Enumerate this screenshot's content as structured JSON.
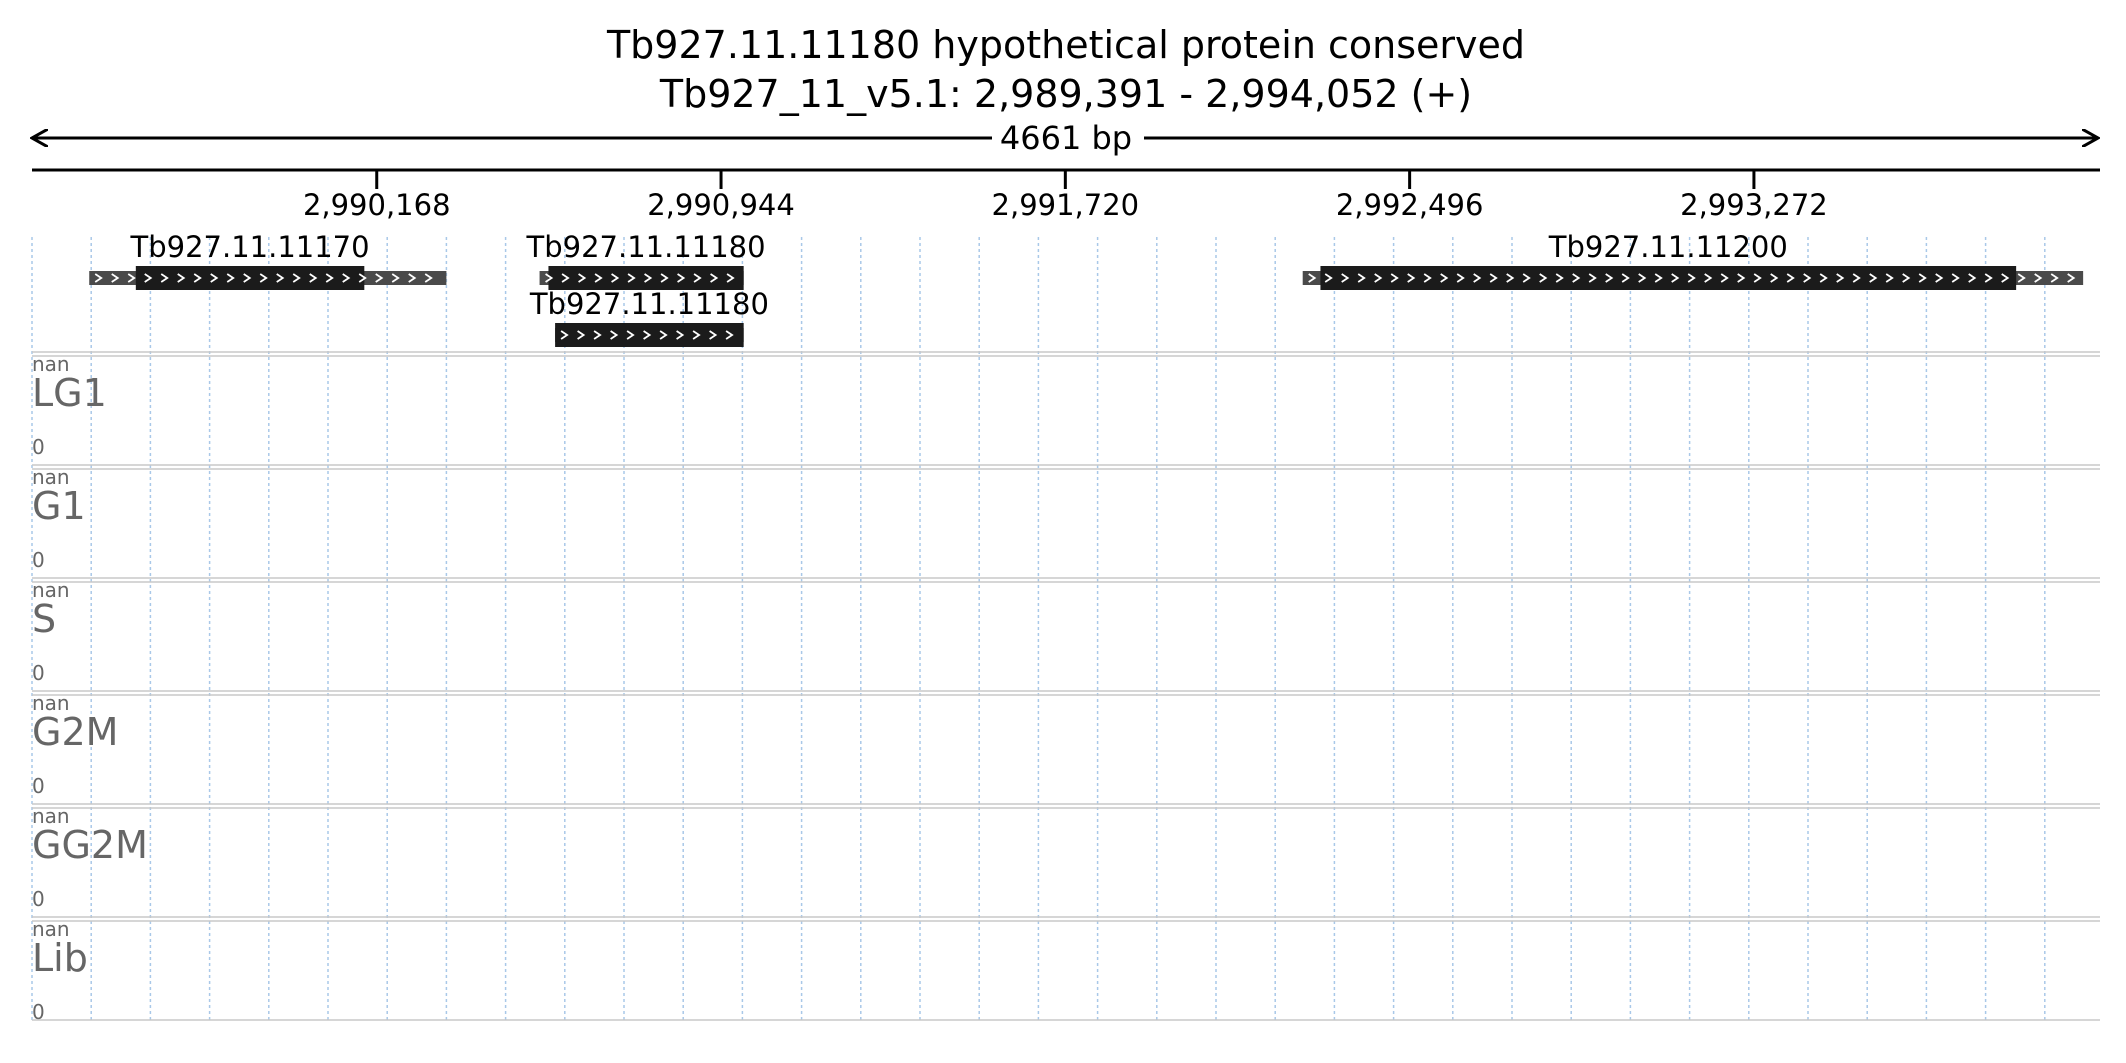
{
  "header": {
    "gene_title": "Tb927.11.11180  hypothetical protein  conserved",
    "locus": "Tb927_11_v5.1: 2,989,391 - 2,994,052 (+)",
    "span_label": "4661 bp"
  },
  "region": {
    "start": 2989391,
    "end": 2994052
  },
  "ruler": {
    "ticks": [
      {
        "pos": 2990168,
        "label": "2,990,168"
      },
      {
        "pos": 2990944,
        "label": "2,990,944"
      },
      {
        "pos": 2991720,
        "label": "2,991,720"
      },
      {
        "pos": 2992496,
        "label": "2,992,496"
      },
      {
        "pos": 2993272,
        "label": "2,993,272"
      }
    ]
  },
  "features": [
    {
      "name": "Tb927.11.11170",
      "row": 0,
      "start": 2989520,
      "end": 2990325,
      "cds_start": 2989625,
      "cds_end": 2990140
    },
    {
      "name": "Tb927.11.11180",
      "row": 0,
      "start": 2990535,
      "end": 2990995,
      "cds_start": 2990555,
      "cds_end": 2990995
    },
    {
      "name": "Tb927.11.11180",
      "row": 1,
      "start": 2990570,
      "end": 2990995,
      "cds_start": 2990570,
      "cds_end": 2990995
    },
    {
      "name": "Tb927.11.11200",
      "row": 0,
      "start": 2992255,
      "end": 2994014,
      "cds_start": 2992295,
      "cds_end": 2993863
    }
  ],
  "tracks": [
    {
      "name": "LG1",
      "max_label": "nan",
      "min_label": "0"
    },
    {
      "name": "G1",
      "max_label": "nan",
      "min_label": "0"
    },
    {
      "name": "S",
      "max_label": "nan",
      "min_label": "0"
    },
    {
      "name": "G2M",
      "max_label": "nan",
      "min_label": "0"
    },
    {
      "name": "GG2M",
      "max_label": "nan",
      "min_label": "0"
    },
    {
      "name": "Lib",
      "max_label": "nan",
      "min_label": "0"
    }
  ],
  "colors": {
    "cds": "#1b1b1b",
    "utr": "#4a4a4a",
    "grid": "#a9c8e8",
    "track_label": "#666666",
    "separator": "#c8c8c8"
  }
}
